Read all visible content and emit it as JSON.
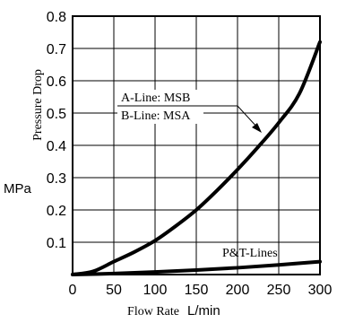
{
  "chart_data": {
    "type": "line",
    "xlabel": "Flow Rate",
    "xunit": "L/min",
    "ylabel": "Pressure Drop",
    "yunit": "MPa",
    "xlim": [
      0,
      300
    ],
    "ylim": [
      0,
      0.8
    ],
    "xticks": [
      0,
      50,
      100,
      150,
      200,
      250,
      300
    ],
    "yticks": [
      0.1,
      0.2,
      0.3,
      0.4,
      0.5,
      0.6,
      0.7,
      0.8
    ],
    "grid": true,
    "series": [
      {
        "name": "A-Line: MSB / B-Line: MSA",
        "x": [
          0,
          25,
          50,
          75,
          100,
          125,
          150,
          175,
          200,
          225,
          250,
          275,
          300
        ],
        "y": [
          0.0,
          0.01,
          0.04,
          0.07,
          0.105,
          0.15,
          0.2,
          0.26,
          0.325,
          0.395,
          0.47,
          0.56,
          0.72
        ]
      },
      {
        "name": "P&T-Lines",
        "x": [
          0,
          50,
          100,
          150,
          200,
          250,
          300
        ],
        "y": [
          0.0,
          0.003,
          0.008,
          0.014,
          0.021,
          0.03,
          0.04
        ]
      }
    ],
    "annotations": {
      "curve1_line1": "A-Line: MSB",
      "curve1_line2": "B-Line: MSA",
      "curve2": "P&T-Lines"
    }
  }
}
